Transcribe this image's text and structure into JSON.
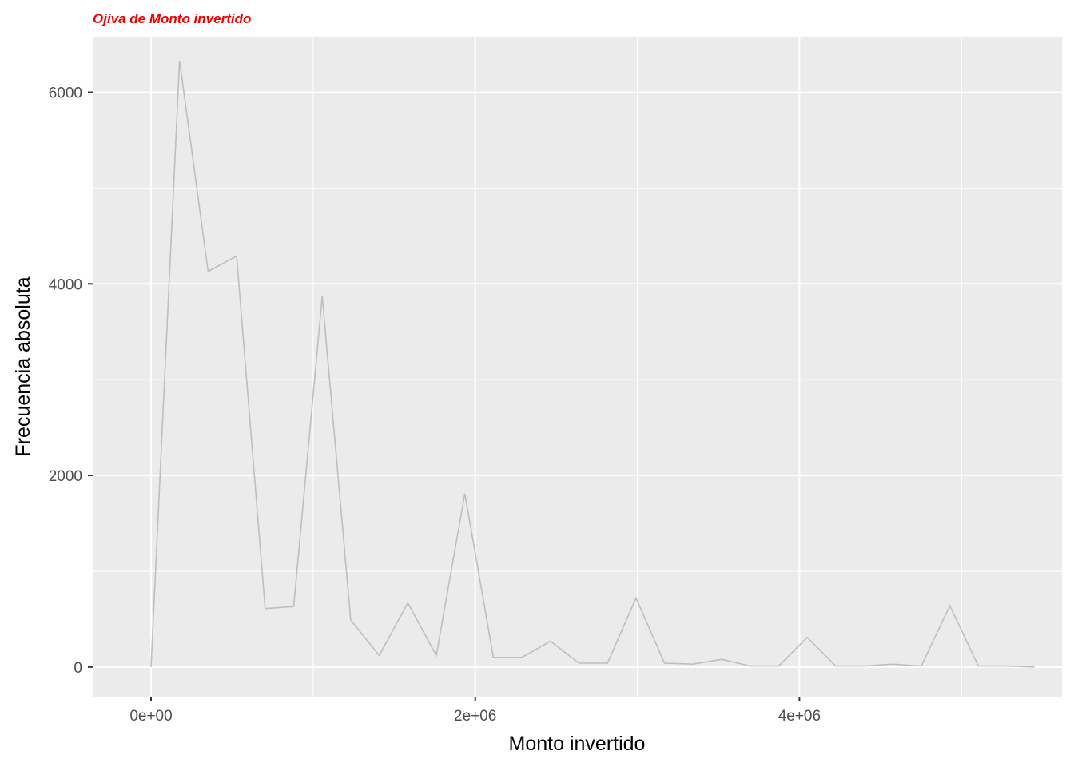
{
  "chart_data": {
    "type": "line",
    "title": "Ojiva de Monto invertido",
    "xlabel": "Monto invertido",
    "ylabel": "Frecuencia absoluta",
    "xlim": [
      -360000,
      5620000
    ],
    "ylim": [
      -310,
      6580
    ],
    "x_ticks": [
      {
        "value": 0,
        "label": "0e+00"
      },
      {
        "value": 2000000,
        "label": "2e+06"
      },
      {
        "value": 4000000,
        "label": "4e+06"
      }
    ],
    "x_minor_ticks": [
      1000000,
      3000000,
      5000000
    ],
    "y_ticks": [
      {
        "value": 0,
        "label": "0"
      },
      {
        "value": 2000,
        "label": "2000"
      },
      {
        "value": 4000,
        "label": "4000"
      },
      {
        "value": 6000,
        "label": "6000"
      }
    ],
    "y_minor_ticks": [
      1000,
      3000,
      5000
    ],
    "grid": true,
    "colors": {
      "panel": "#ebebeb",
      "grid": "#ffffff",
      "line": "#bebebe",
      "title": "#ee0000"
    },
    "series": [
      {
        "x": [
          0,
          176000,
          352000,
          528000,
          704000,
          880000,
          1056000,
          1232000,
          1408000,
          1584000,
          1760000,
          1936000,
          2112000,
          2288000,
          2464000,
          2640000,
          2816000,
          2992000,
          3168000,
          3344000,
          3520000,
          3696000,
          3872000,
          4048000,
          4224000,
          4400000,
          4576000,
          4752000,
          4928000,
          5104000,
          5280000,
          5450000
        ],
        "y": [
          0,
          6330,
          4130,
          4290,
          610,
          630,
          3870,
          490,
          120,
          670,
          120,
          1810,
          100,
          100,
          270,
          40,
          40,
          720,
          40,
          30,
          80,
          10,
          10,
          310,
          10,
          10,
          30,
          10,
          640,
          10,
          10,
          0
        ]
      }
    ]
  }
}
